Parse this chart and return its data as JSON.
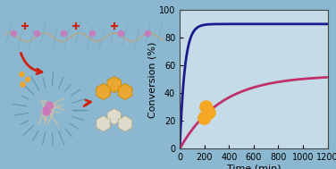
{
  "background_color": "#8bb8d0",
  "plot_bg_color": "#c5dce8",
  "title": "",
  "xlabel": "Time (min)",
  "ylabel": "Conversion (%)",
  "xlim": [
    0,
    1200
  ],
  "ylim": [
    0,
    100
  ],
  "xticks": [
    0,
    200,
    400,
    600,
    800,
    1000,
    1200
  ],
  "yticks": [
    0,
    20,
    40,
    60,
    80,
    100
  ],
  "curve1_color": "#1a1a8c",
  "curve1_Vmax": 90,
  "curve1_k": 0.025,
  "curve2_color": "#c0306a",
  "curve2_Vmax": 53,
  "curve2_k": 0.003,
  "orange_circles": [
    [
      200,
      22
    ],
    [
      240,
      26
    ],
    [
      215,
      30
    ]
  ],
  "orange_color": "#f5a623",
  "circle_size": 120,
  "xlabel_fontsize": 8,
  "ylabel_fontsize": 8,
  "tick_fontsize": 7
}
